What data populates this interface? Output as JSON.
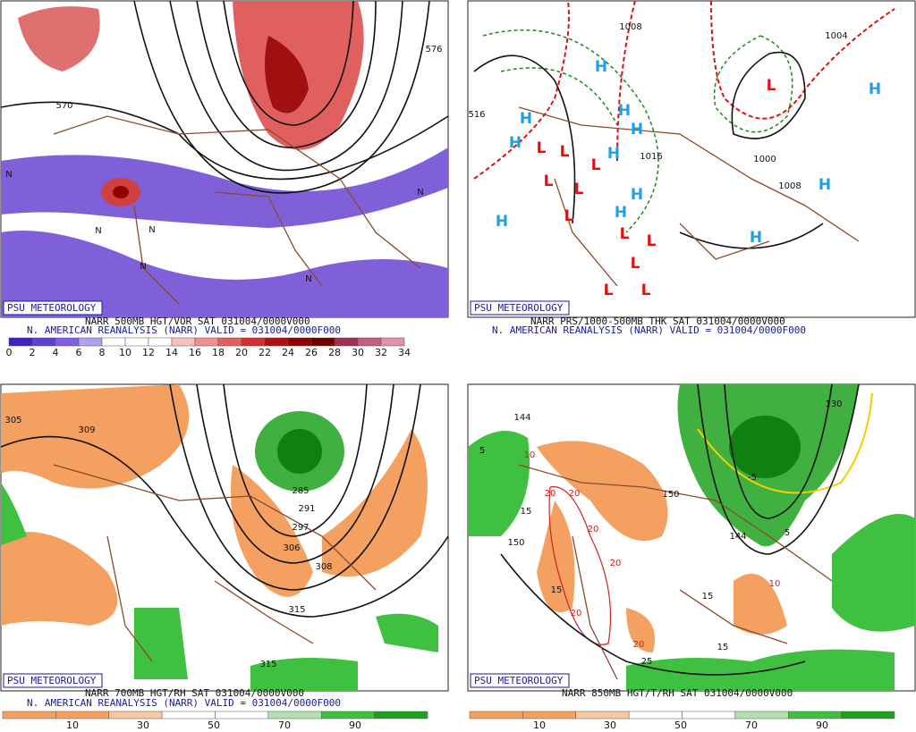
{
  "panels": [
    {
      "logo": "PSU METEOROLOGY",
      "title": "NARR 500MB HGT/VOR SAT 031004/0000V000",
      "subtitle": "N. AMERICAN REANALYSIS (NARR) VALID = 031004/0000F000",
      "colorbar_labels": [
        0,
        2,
        4,
        6,
        8,
        10,
        12,
        14,
        16,
        18,
        20,
        22,
        24,
        26,
        28,
        30,
        32,
        34
      ],
      "map_labels": [
        "576",
        "570",
        "N",
        "N",
        "N",
        "N",
        "N",
        "N"
      ]
    },
    {
      "logo": "PSU METEOROLOGY",
      "title": "NARR PRS/1000-500MB THK SAT 031004/0000V000",
      "subtitle": "N. AMERICAN REANALYSIS (NARR) VALID = 031004/0000F000",
      "map_labels": [
        "H",
        "H",
        "H",
        "H",
        "H",
        "H",
        "H",
        "H",
        "H",
        "H",
        "H",
        "H",
        "L",
        "L",
        "L",
        "L",
        "L",
        "L",
        "L",
        "L",
        "L",
        "L",
        "L",
        "L",
        "1008",
        "1016",
        "1000",
        "1008",
        "1004",
        "516"
      ]
    },
    {
      "logo": "PSU METEOROLOGY",
      "title": "NARR 700MB HGT/RH SAT 031004/0000V000",
      "subtitle": "N. AMERICAN REANALYSIS (NARR) VALID = 031004/0000F000",
      "colorbar_labels": [
        10,
        30,
        50,
        70,
        90
      ],
      "map_labels": [
        "305",
        "309",
        "285",
        "291",
        "297",
        "306",
        "308",
        "315",
        "315"
      ]
    },
    {
      "logo": "PSU METEOROLOGY",
      "title": "NARR 850MB HGT/T/RH SAT 031004/0000V000",
      "colorbar_labels": [
        10,
        30,
        50,
        70,
        90
      ],
      "map_labels": [
        "144",
        "150",
        "150",
        "144",
        "10",
        "20",
        "20",
        "20",
        "20",
        "20",
        "20",
        "15",
        "15",
        "15",
        "15",
        "25",
        "-5",
        "5",
        "5",
        "10",
        "130"
      ]
    }
  ]
}
